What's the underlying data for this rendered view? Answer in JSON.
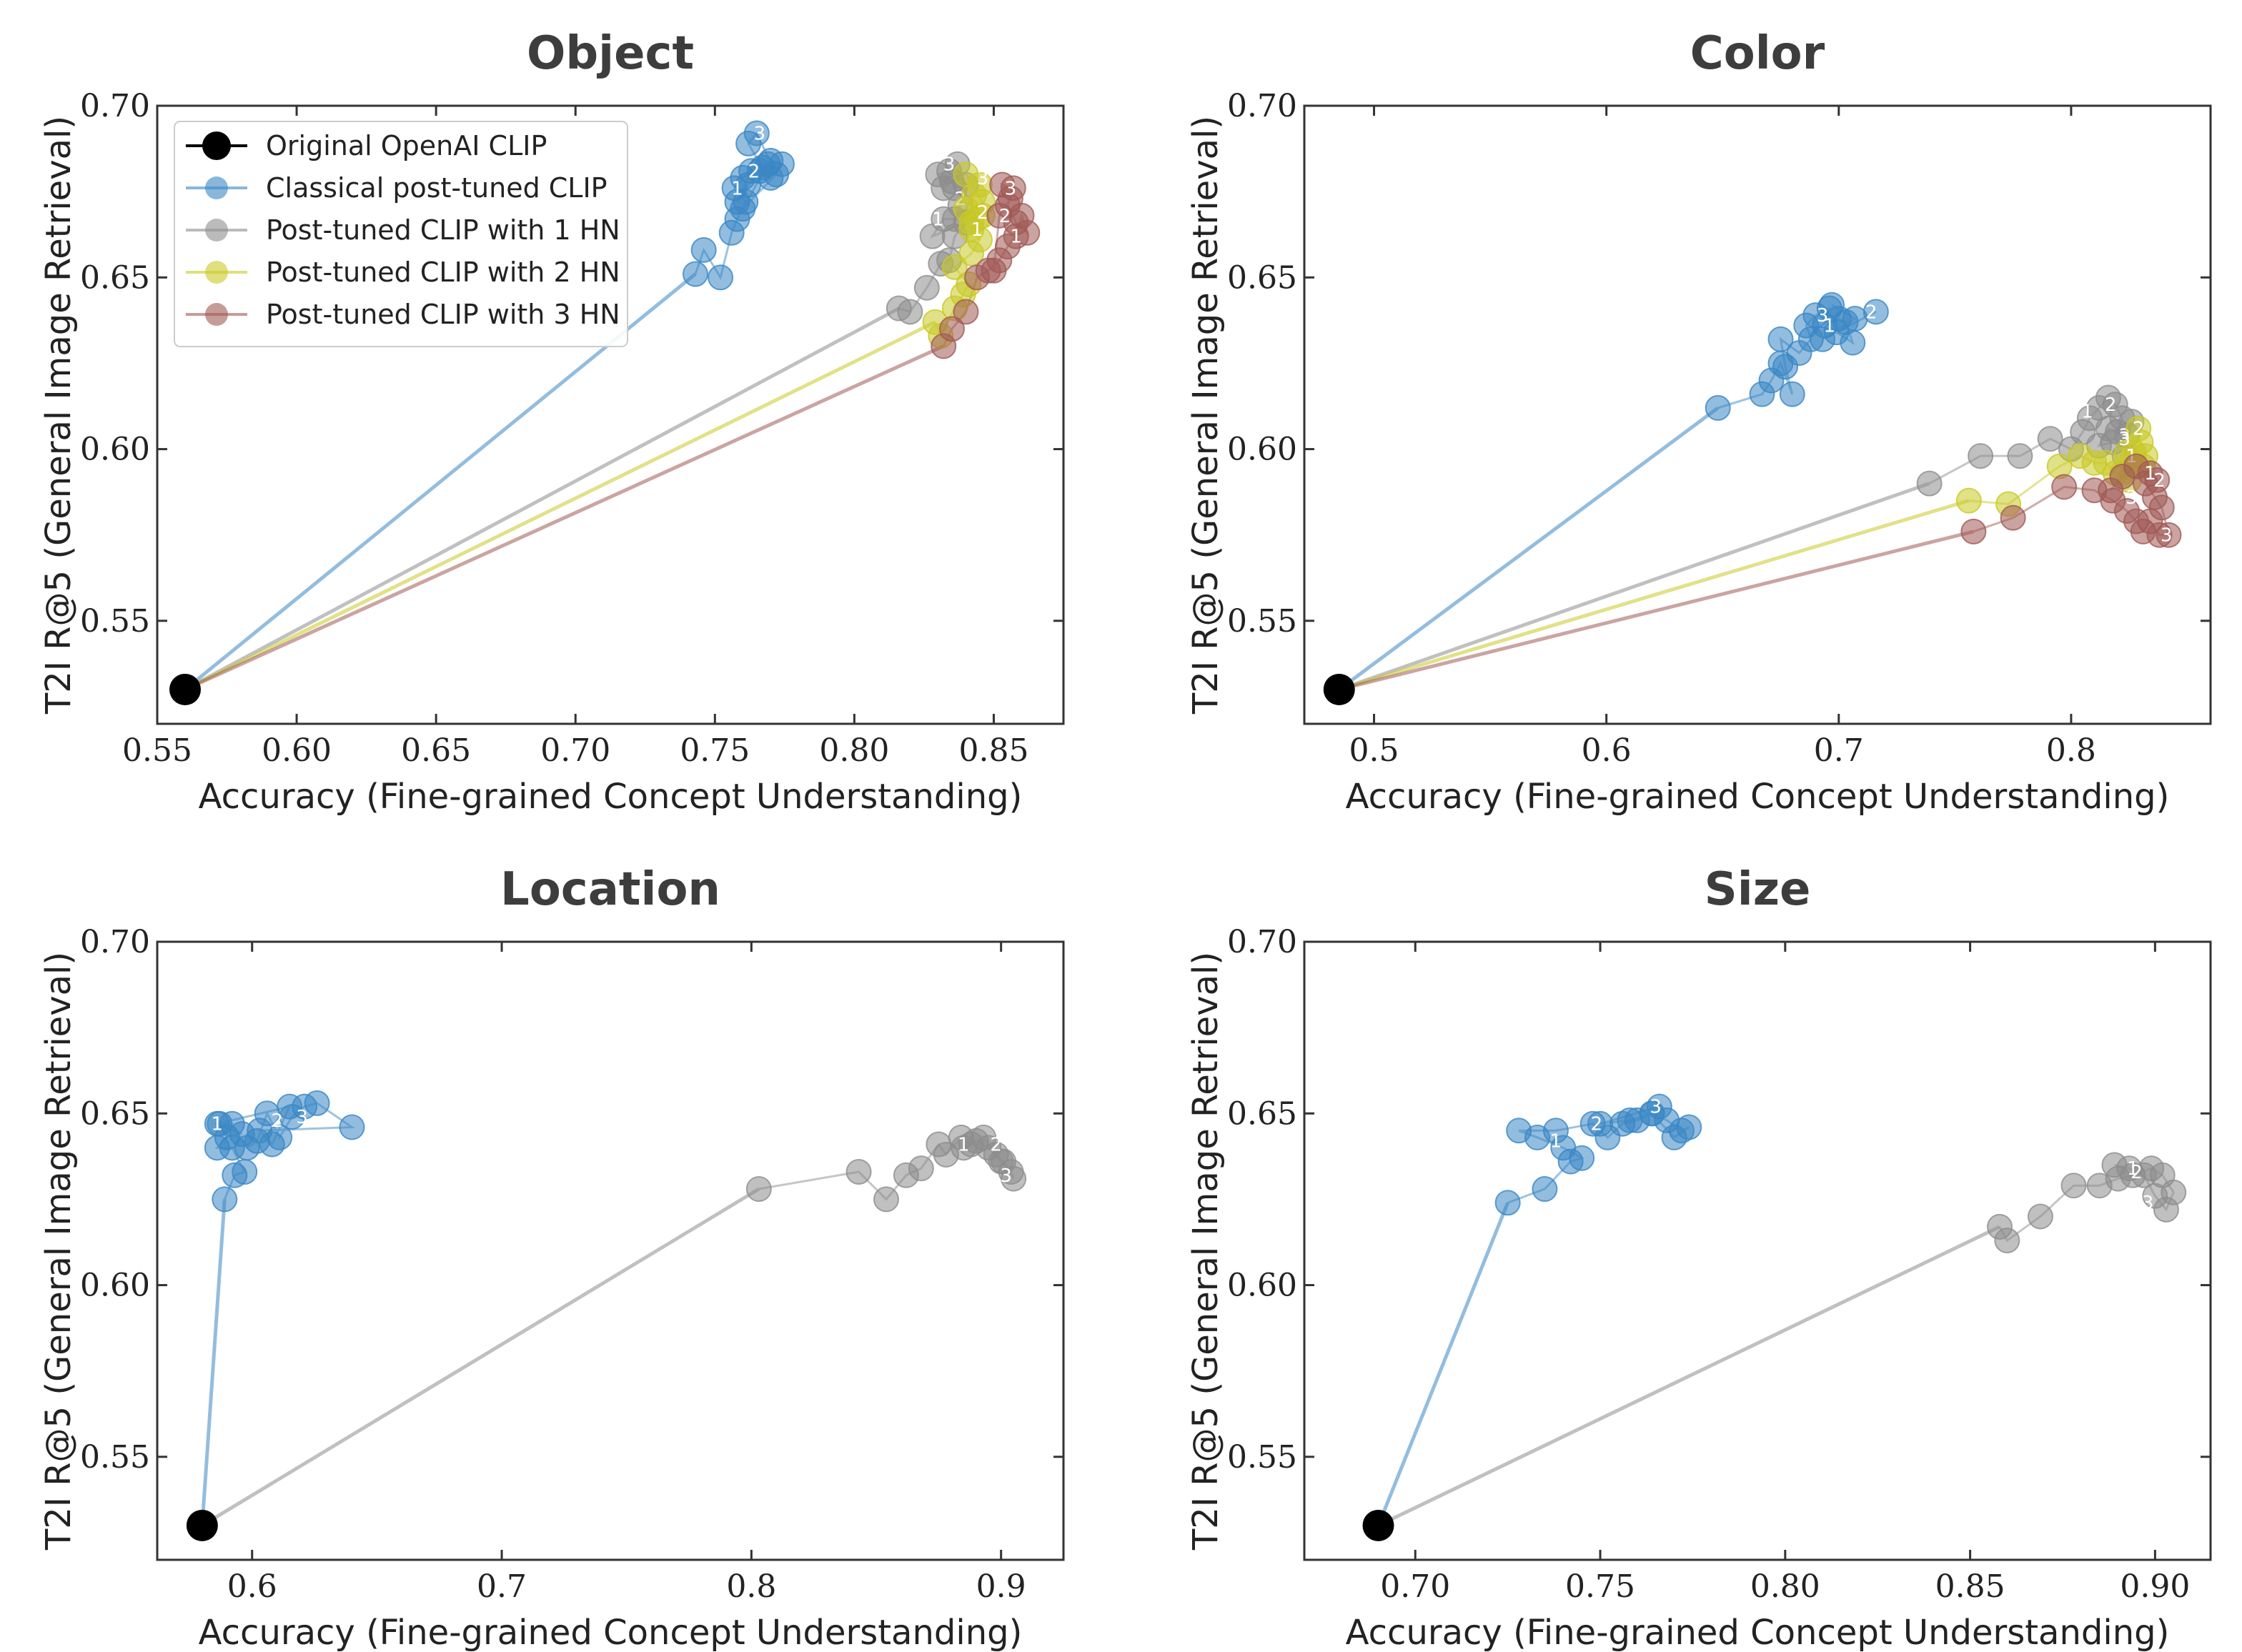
{
  "chart_data": [
    {
      "type": "scatter",
      "title": "Object",
      "xlabel": "Accuracy (Fine-grained Concept Understanding)",
      "ylabel": "T2I R@5 (General Image Retrieval)",
      "xlim": [
        0.55,
        0.875
      ],
      "ylim": [
        0.52,
        0.7
      ],
      "xticks": [
        0.55,
        0.6,
        0.65,
        0.7,
        0.75,
        0.8,
        0.85
      ],
      "xticklabels": [
        "0.55",
        "0.60",
        "0.65",
        "0.70",
        "0.75",
        "0.80",
        "0.85"
      ],
      "yticks": [
        0.55,
        0.6,
        0.65,
        0.7
      ],
      "yticklabels": [
        "0.55",
        "0.60",
        "0.65",
        "0.70"
      ],
      "legend": {
        "position": "top-left",
        "entries": [
          {
            "label": "Original OpenAI CLIP",
            "color": "#000000"
          },
          {
            "label": "Classical post-tuned CLIP",
            "color": "#3a87c4"
          },
          {
            "label": "Post-tuned CLIP with 1 HN",
            "color": "#8d8d8d"
          },
          {
            "label": "Post-tuned CLIP with 2 HN",
            "color": "#c9c926"
          },
          {
            "label": "Post-tuned CLIP with 3 HN",
            "color": "#a05a55"
          }
        ]
      },
      "origin": {
        "x": 0.56,
        "y": 0.53
      },
      "series": [
        {
          "name": "Classical post-tuned CLIP",
          "color": "#3a87c4",
          "x": [
            0.743,
            0.746,
            0.752,
            0.756,
            0.758,
            0.761,
            0.757,
            0.76,
            0.763,
            0.758,
            0.762,
            0.766,
            0.77,
            0.774,
            0.77,
            0.767,
            0.762,
            0.765,
            0.772,
            0.76,
            0.769
          ],
          "y": [
            0.651,
            0.658,
            0.65,
            0.663,
            0.667,
            0.672,
            0.676,
            0.679,
            0.681,
            0.672,
            0.677,
            0.681,
            0.679,
            0.683,
            0.684,
            0.682,
            0.689,
            0.692,
            0.68,
            0.67,
            0.683
          ],
          "labels": [
            {
              "x": 0.758,
              "y": 0.676,
              "text": "1"
            },
            {
              "x": 0.764,
              "y": 0.681,
              "text": "2"
            },
            {
              "x": 0.766,
              "y": 0.692,
              "text": "3"
            }
          ]
        },
        {
          "name": "Post-tuned CLIP with 1 HN",
          "color": "#8d8d8d",
          "x": [
            0.816,
            0.82,
            0.826,
            0.831,
            0.834,
            0.836,
            0.84,
            0.828,
            0.832,
            0.836,
            0.838,
            0.84,
            0.836,
            0.835,
            0.832,
            0.83,
            0.834,
            0.837
          ],
          "y": [
            0.641,
            0.64,
            0.647,
            0.654,
            0.655,
            0.662,
            0.666,
            0.662,
            0.667,
            0.667,
            0.671,
            0.677,
            0.676,
            0.678,
            0.676,
            0.68,
            0.681,
            0.683
          ],
          "labels": [
            {
              "x": 0.83,
              "y": 0.667,
              "text": "1"
            },
            {
              "x": 0.838,
              "y": 0.673,
              "text": "2"
            },
            {
              "x": 0.834,
              "y": 0.683,
              "text": "3"
            }
          ]
        },
        {
          "name": "Post-tuned CLIP with 2 HN",
          "color": "#c9c926",
          "x": [
            0.829,
            0.831,
            0.836,
            0.839,
            0.841,
            0.836,
            0.842,
            0.845,
            0.842,
            0.844,
            0.846,
            0.84,
            0.843,
            0.845,
            0.84,
            0.846,
            0.842
          ],
          "y": [
            0.637,
            0.633,
            0.641,
            0.645,
            0.648,
            0.653,
            0.657,
            0.661,
            0.664,
            0.667,
            0.668,
            0.67,
            0.674,
            0.677,
            0.68,
            0.672,
            0.666
          ],
          "labels": [
            {
              "x": 0.844,
              "y": 0.664,
              "text": "1"
            },
            {
              "x": 0.846,
              "y": 0.669,
              "text": "2"
            },
            {
              "x": 0.846,
              "y": 0.679,
              "text": "3"
            }
          ]
        },
        {
          "name": "Post-tuned CLIP with 3 HN",
          "color": "#a05a55",
          "x": [
            0.832,
            0.835,
            0.84,
            0.844,
            0.848,
            0.852,
            0.855,
            0.858,
            0.86,
            0.862,
            0.858,
            0.855,
            0.857,
            0.853,
            0.856,
            0.852,
            0.85
          ],
          "y": [
            0.63,
            0.635,
            0.64,
            0.65,
            0.652,
            0.655,
            0.659,
            0.662,
            0.668,
            0.663,
            0.666,
            0.671,
            0.676,
            0.677,
            0.673,
            0.668,
            0.652
          ],
          "labels": [
            {
              "x": 0.858,
              "y": 0.662,
              "text": "1"
            },
            {
              "x": 0.854,
              "y": 0.668,
              "text": "2"
            },
            {
              "x": 0.856,
              "y": 0.676,
              "text": "3"
            }
          ]
        }
      ]
    },
    {
      "type": "scatter",
      "title": "Color",
      "xlabel": "Accuracy (Fine-grained Concept Understanding)",
      "ylabel": "T2I R@5 (General Image Retrieval)",
      "xlim": [
        0.47,
        0.86
      ],
      "ylim": [
        0.52,
        0.7
      ],
      "xticks": [
        0.5,
        0.6,
        0.7,
        0.8
      ],
      "xticklabels": [
        "0.5",
        "0.6",
        "0.7",
        "0.8"
      ],
      "yticks": [
        0.55,
        0.6,
        0.65,
        0.7
      ],
      "yticklabels": [
        "0.55",
        "0.60",
        "0.65",
        "0.70"
      ],
      "origin": {
        "x": 0.485,
        "y": 0.53
      },
      "series": [
        {
          "name": "Classical post-tuned CLIP",
          "color": "#3a87c4",
          "x": [
            0.648,
            0.667,
            0.671,
            0.675,
            0.68,
            0.677,
            0.675,
            0.683,
            0.688,
            0.686,
            0.69,
            0.696,
            0.694,
            0.7,
            0.703,
            0.706,
            0.699,
            0.716,
            0.693,
            0.707,
            0.697
          ],
          "y": [
            0.612,
            0.616,
            0.62,
            0.625,
            0.616,
            0.624,
            0.632,
            0.628,
            0.632,
            0.636,
            0.639,
            0.641,
            0.636,
            0.638,
            0.637,
            0.631,
            0.634,
            0.64,
            0.632,
            0.638,
            0.642
          ],
          "labels": [
            {
              "x": 0.696,
              "y": 0.636,
              "text": "1"
            },
            {
              "x": 0.714,
              "y": 0.64,
              "text": "2"
            },
            {
              "x": 0.693,
              "y": 0.639,
              "text": "3"
            }
          ]
        },
        {
          "name": "Post-tuned CLIP with 1 HN",
          "color": "#8d8d8d",
          "x": [
            0.739,
            0.761,
            0.778,
            0.791,
            0.8,
            0.805,
            0.808,
            0.812,
            0.816,
            0.819,
            0.822,
            0.82,
            0.816,
            0.812,
            0.818,
            0.824,
            0.826,
            0.823
          ],
          "y": [
            0.59,
            0.598,
            0.598,
            0.603,
            0.6,
            0.605,
            0.609,
            0.612,
            0.615,
            0.613,
            0.609,
            0.605,
            0.606,
            0.601,
            0.602,
            0.604,
            0.608,
            0.598
          ],
          "labels": [
            {
              "x": 0.807,
              "y": 0.611,
              "text": "1"
            },
            {
              "x": 0.817,
              "y": 0.613,
              "text": "2"
            },
            {
              "x": 0.823,
              "y": 0.604,
              "text": "3"
            }
          ]
        },
        {
          "name": "Post-tuned CLIP with 2 HN",
          "color": "#c9c926",
          "x": [
            0.756,
            0.773,
            0.795,
            0.804,
            0.81,
            0.815,
            0.819,
            0.822,
            0.825,
            0.828,
            0.832,
            0.83,
            0.827,
            0.824,
            0.826,
            0.831,
            0.829
          ],
          "y": [
            0.585,
            0.584,
            0.595,
            0.598,
            0.596,
            0.596,
            0.593,
            0.593,
            0.591,
            0.595,
            0.598,
            0.602,
            0.599,
            0.599,
            0.596,
            0.595,
            0.606
          ],
          "labels": [
            {
              "x": 0.826,
              "y": 0.598,
              "text": "1"
            },
            {
              "x": 0.829,
              "y": 0.606,
              "text": "2"
            },
            {
              "x": 0.823,
              "y": 0.603,
              "text": "3"
            }
          ]
        },
        {
          "name": "Post-tuned CLIP with 3 HN",
          "color": "#a05a55",
          "x": [
            0.758,
            0.775,
            0.797,
            0.81,
            0.818,
            0.824,
            0.828,
            0.831,
            0.834,
            0.838,
            0.842,
            0.839,
            0.836,
            0.832,
            0.834,
            0.837,
            0.828,
            0.822,
            0.817
          ],
          "y": [
            0.576,
            0.58,
            0.589,
            0.588,
            0.585,
            0.582,
            0.579,
            0.576,
            0.579,
            0.575,
            0.575,
            0.583,
            0.586,
            0.59,
            0.593,
            0.591,
            0.595,
            0.592,
            0.588
          ],
          "labels": [
            {
              "x": 0.834,
              "y": 0.593,
              "text": "1"
            },
            {
              "x": 0.838,
              "y": 0.591,
              "text": "2"
            },
            {
              "x": 0.826,
              "y": 0.586,
              "text": "3"
            },
            {
              "x": 0.841,
              "y": 0.575,
              "text": "3"
            }
          ]
        }
      ]
    },
    {
      "type": "scatter",
      "title": "Location",
      "xlabel": "Accuracy (Fine-grained Concept Understanding)",
      "ylabel": "T2I R@5 (General Image Retrieval)",
      "xlim": [
        0.562,
        0.925
      ],
      "ylim": [
        0.52,
        0.7
      ],
      "xticks": [
        0.6,
        0.7,
        0.8,
        0.9
      ],
      "xticklabels": [
        "0.6",
        "0.7",
        "0.8",
        "0.9"
      ],
      "yticks": [
        0.55,
        0.6,
        0.65,
        0.7
      ],
      "yticklabels": [
        "0.55",
        "0.60",
        "0.65",
        "0.70"
      ],
      "origin": {
        "x": 0.58,
        "y": 0.53
      },
      "series": [
        {
          "name": "Classical post-tuned CLIP",
          "color": "#3a87c4",
          "x": [
            0.589,
            0.593,
            0.597,
            0.592,
            0.586,
            0.59,
            0.587,
            0.592,
            0.598,
            0.602,
            0.606,
            0.611,
            0.616,
            0.621,
            0.626,
            0.64,
            0.603,
            0.608,
            0.615,
            0.586,
            0.596
          ],
          "y": [
            0.625,
            0.632,
            0.633,
            0.64,
            0.64,
            0.643,
            0.647,
            0.647,
            0.64,
            0.642,
            0.65,
            0.643,
            0.649,
            0.652,
            0.653,
            0.646,
            0.645,
            0.641,
            0.652,
            0.647,
            0.644
          ],
          "labels": [
            {
              "x": 0.586,
              "y": 0.647,
              "text": "1"
            },
            {
              "x": 0.61,
              "y": 0.648,
              "text": "2"
            },
            {
              "x": 0.62,
              "y": 0.649,
              "text": "3"
            }
          ]
        },
        {
          "name": "Post-tuned CLIP with 1 HN",
          "color": "#8d8d8d",
          "x": [
            0.803,
            0.843,
            0.854,
            0.862,
            0.868,
            0.875,
            0.878,
            0.884,
            0.888,
            0.893,
            0.898,
            0.901,
            0.905,
            0.904,
            0.9,
            0.895,
            0.89,
            0.885
          ],
          "y": [
            0.628,
            0.633,
            0.625,
            0.632,
            0.634,
            0.641,
            0.638,
            0.643,
            0.641,
            0.643,
            0.638,
            0.636,
            0.631,
            0.633,
            0.636,
            0.64,
            0.642,
            0.64
          ],
          "labels": [
            {
              "x": 0.885,
              "y": 0.641,
              "text": "1"
            },
            {
              "x": 0.898,
              "y": 0.641,
              "text": "2"
            },
            {
              "x": 0.902,
              "y": 0.632,
              "text": "3"
            }
          ]
        }
      ]
    },
    {
      "type": "scatter",
      "title": "Size",
      "xlabel": "Accuracy (Fine-grained Concept Understanding)",
      "ylabel": "T2I R@5 (General Image Retrieval)",
      "xlim": [
        0.67,
        0.915
      ],
      "ylim": [
        0.52,
        0.7
      ],
      "xticks": [
        0.7,
        0.75,
        0.8,
        0.85,
        0.9
      ],
      "xticklabels": [
        "0.70",
        "0.75",
        "0.80",
        "0.85",
        "0.90"
      ],
      "yticks": [
        0.55,
        0.6,
        0.65,
        0.7
      ],
      "yticklabels": [
        "0.55",
        "0.60",
        "0.65",
        "0.70"
      ],
      "origin": {
        "x": 0.69,
        "y": 0.53
      },
      "series": [
        {
          "name": "Classical post-tuned CLIP",
          "color": "#3a87c4",
          "x": [
            0.725,
            0.735,
            0.742,
            0.745,
            0.74,
            0.733,
            0.728,
            0.738,
            0.748,
            0.752,
            0.756,
            0.76,
            0.764,
            0.768,
            0.772,
            0.774,
            0.77,
            0.764,
            0.758,
            0.75,
            0.766
          ],
          "y": [
            0.624,
            0.628,
            0.636,
            0.637,
            0.64,
            0.643,
            0.645,
            0.645,
            0.647,
            0.643,
            0.647,
            0.648,
            0.65,
            0.648,
            0.645,
            0.646,
            0.643,
            0.65,
            0.648,
            0.647,
            0.652
          ],
          "labels": [
            {
              "x": 0.738,
              "y": 0.642,
              "text": "1"
            },
            {
              "x": 0.749,
              "y": 0.647,
              "text": "2"
            },
            {
              "x": 0.765,
              "y": 0.652,
              "text": "3"
            }
          ]
        },
        {
          "name": "Post-tuned CLIP with 1 HN",
          "color": "#8d8d8d",
          "x": [
            0.858,
            0.86,
            0.869,
            0.878,
            0.885,
            0.89,
            0.894,
            0.899,
            0.902,
            0.905,
            0.903,
            0.9,
            0.897,
            0.893,
            0.889
          ],
          "y": [
            0.617,
            0.613,
            0.62,
            0.629,
            0.629,
            0.631,
            0.632,
            0.634,
            0.632,
            0.627,
            0.622,
            0.626,
            0.632,
            0.634,
            0.635
          ],
          "labels": [
            {
              "x": 0.894,
              "y": 0.634,
              "text": "1"
            },
            {
              "x": 0.895,
              "y": 0.633,
              "text": "2"
            },
            {
              "x": 0.898,
              "y": 0.624,
              "text": "3"
            }
          ]
        }
      ]
    }
  ]
}
